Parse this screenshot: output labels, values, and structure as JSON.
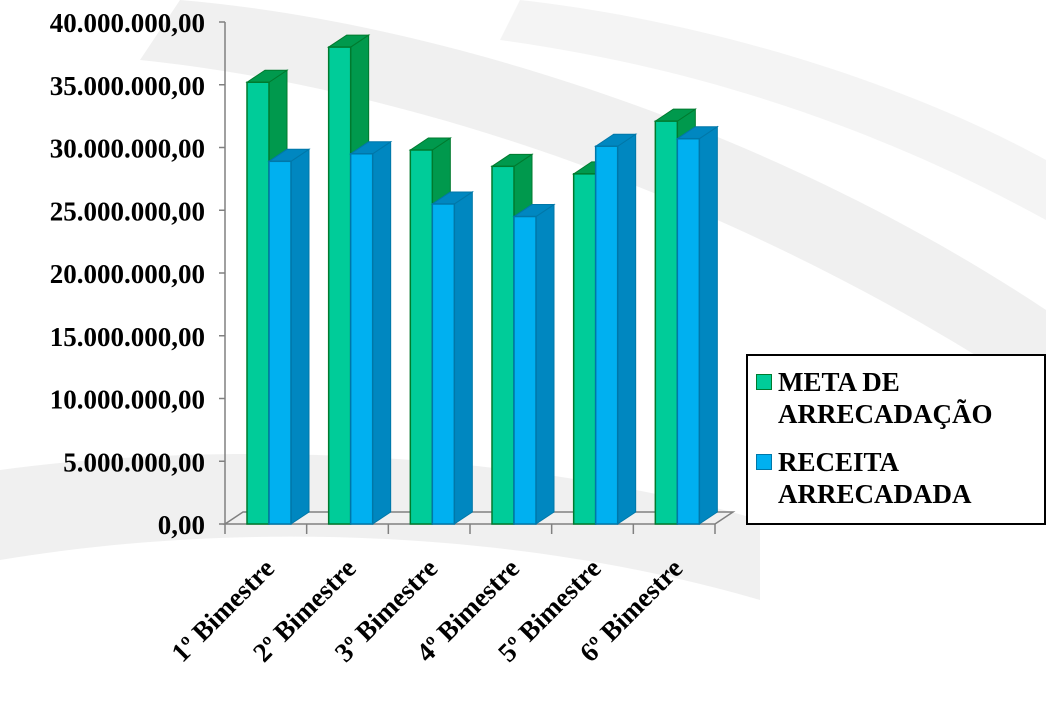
{
  "chart_data": {
    "type": "bar",
    "categories": [
      "1º Bimestre",
      "2º Bimestre",
      "3º Bimestre",
      "4º Bimestre",
      "5º Bimestre",
      "6º Bimestre"
    ],
    "series": [
      {
        "name": "META DE ARRECADAÇÃO",
        "values": [
          35200000,
          38000000,
          29800000,
          28500000,
          27900000,
          32100000
        ]
      },
      {
        "name": "RECEITA ARRECADADA",
        "values": [
          28900000,
          29500000,
          25500000,
          24500000,
          30100000,
          30700000
        ]
      }
    ],
    "yticks": [
      "0,00",
      "5.000.000,00",
      "10.000.000,00",
      "15.000.000,00",
      "20.000.000,00",
      "25.000.000,00",
      "30.000.000,00",
      "35.000.000,00",
      "40.000.000,00"
    ],
    "ylim": [
      0,
      40000000
    ],
    "title": "",
    "xlabel": "",
    "ylabel": "",
    "legend_position": "right",
    "colors": {
      "meta_face": "#00CC99",
      "meta_side": "#00994D",
      "meta_edge": "#007A2E",
      "receita_face": "#00B0F0",
      "receita_side": "#0087C0",
      "receita_edge": "#0077A8",
      "axis": "#808080",
      "background_swoosh": "#ECECEC"
    }
  }
}
